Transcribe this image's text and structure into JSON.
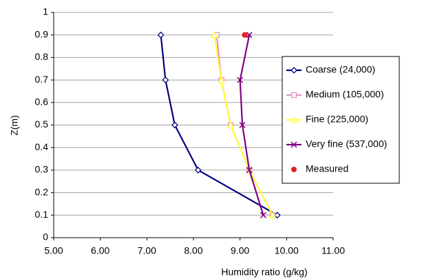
{
  "chart_data": {
    "type": "line",
    "xlabel": "Humidity ratio (g/kg)",
    "ylabel": "Z(m)",
    "xlim": [
      5,
      11
    ],
    "ylim": [
      0,
      1
    ],
    "xticks": [
      {
        "value": 5,
        "label": "5.00"
      },
      {
        "value": 6,
        "label": "6.00"
      },
      {
        "value": 7,
        "label": "7.00"
      },
      {
        "value": 8,
        "label": "8.00"
      },
      {
        "value": 9,
        "label": "9.00"
      },
      {
        "value": 10,
        "label": "10.00"
      },
      {
        "value": 11,
        "label": "11.00"
      }
    ],
    "yticks": [
      0,
      0.1,
      0.2,
      0.3,
      0.4,
      0.5,
      0.6,
      0.7,
      0.8,
      0.9,
      1
    ],
    "grid": true,
    "legend": "right",
    "series": [
      {
        "name": "Coarse (24,000)",
        "color": "#000080",
        "marker": "diamond",
        "line": true,
        "x": [
          9.8,
          8.1,
          7.6,
          7.4,
          7.3
        ],
        "values": [
          0.1,
          0.3,
          0.5,
          0.7,
          0.9
        ]
      },
      {
        "name": "Medium (105,000)",
        "color": "#e890c0",
        "marker": "square",
        "line": true,
        "x": [
          9.7,
          9.2,
          8.8,
          8.6,
          8.5
        ],
        "values": [
          0.1,
          0.3,
          0.5,
          0.7,
          0.9
        ]
      },
      {
        "name": "Fine (225,000)",
        "color": "#ffff33",
        "marker": "triangle",
        "line": true,
        "x": [
          9.7,
          9.2,
          8.8,
          8.6,
          8.45
        ],
        "values": [
          0.1,
          0.3,
          0.5,
          0.7,
          0.9
        ]
      },
      {
        "name": "Very fine (537,000)",
        "color": "#800080",
        "marker": "cross",
        "line": true,
        "x": [
          9.5,
          9.2,
          9.05,
          9.0,
          9.2
        ],
        "values": [
          0.1,
          0.3,
          0.5,
          0.7,
          0.9
        ]
      },
      {
        "name": "Measured",
        "color": "#e02020",
        "marker": "circle",
        "line": false,
        "x": [
          9.1
        ],
        "values": [
          0.9
        ]
      }
    ]
  }
}
